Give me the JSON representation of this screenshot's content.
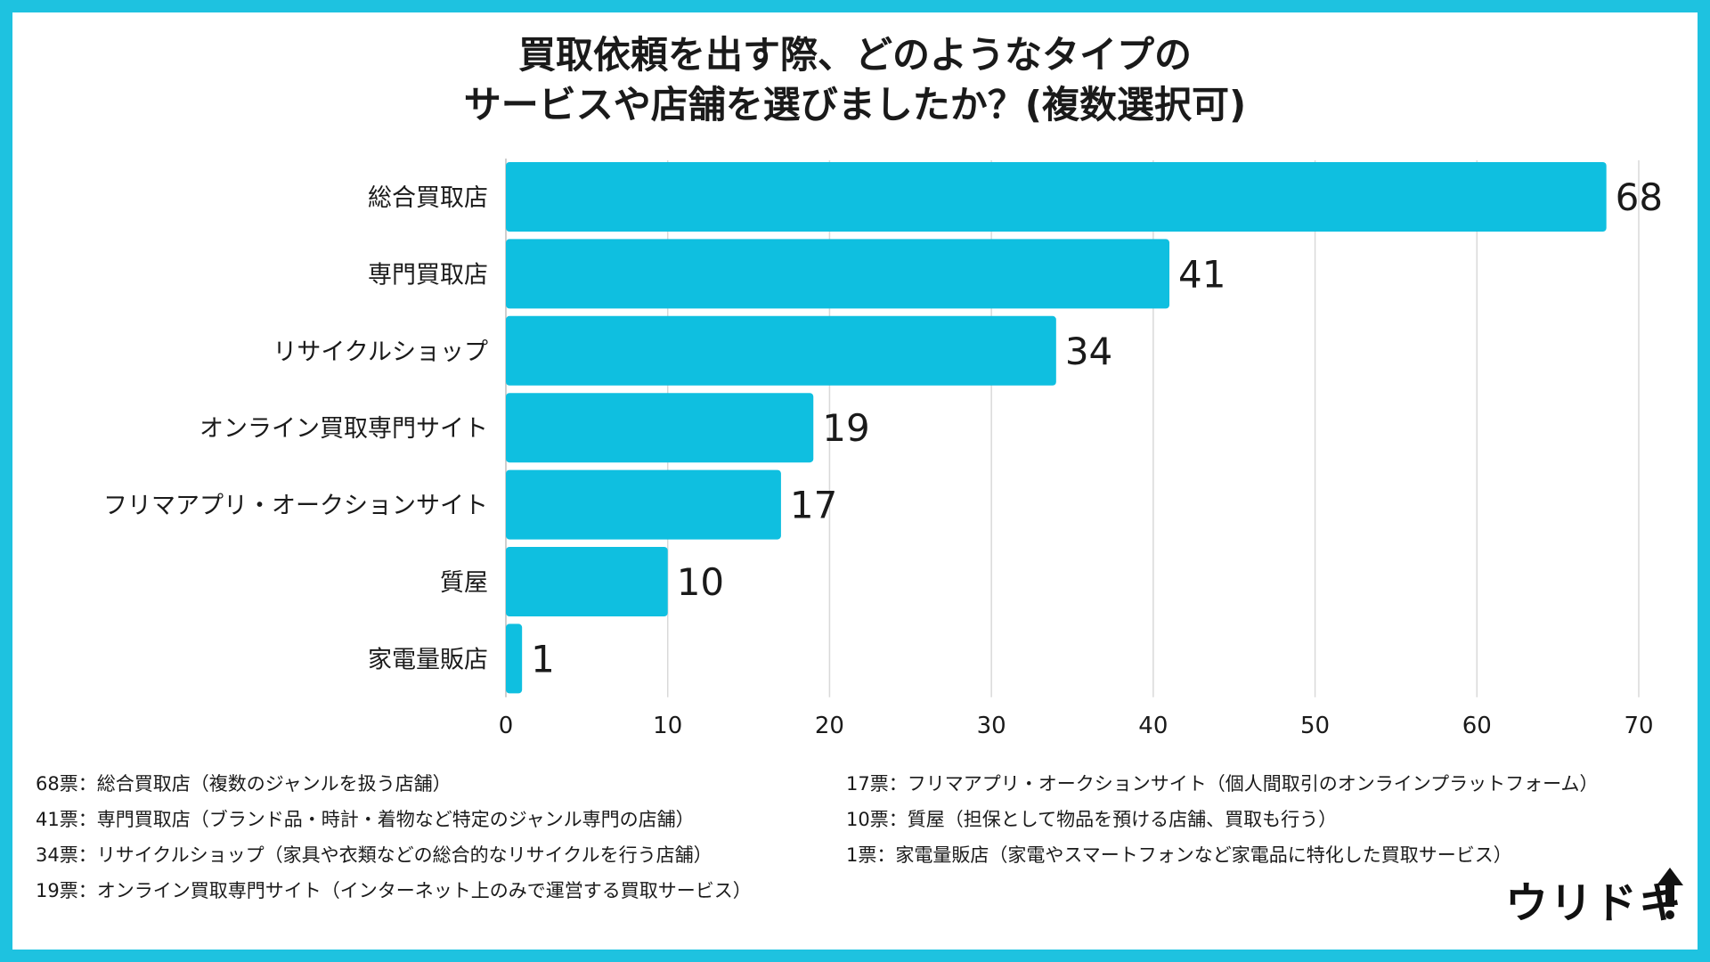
{
  "title": {
    "line1": "買取依頼を出す際、どのようなタイプの",
    "line2": "サービスや店舗を選びましたか？(複数選択可)"
  },
  "chart_data": {
    "type": "bar",
    "orientation": "horizontal",
    "categories": [
      "総合買取店",
      "専門買取店",
      "リサイクルショップ",
      "オンライン買取専門サイト",
      "フリマアプリ・オークションサイト",
      "質屋",
      "家電量販店"
    ],
    "values": [
      68,
      41,
      34,
      19,
      17,
      10,
      1
    ],
    "xlim": [
      0,
      70
    ],
    "xticks": [
      0,
      10,
      20,
      30,
      40,
      50,
      60,
      70
    ],
    "bar_color": "#0fbfe0",
    "grid": true
  },
  "notes_left": [
    "68票：総合買取店（複数のジャンルを扱う店舗）",
    "41票：専門買取店（ブランド品・時計・着物など特定のジャンル専門の店舗）",
    "34票：リサイクルショップ（家具や衣類などの総合的なリサイクルを行う店舗）",
    "19票：オンライン買取専門サイト（インターネット上のみで運営する買取サービス）"
  ],
  "notes_right": [
    "17票：フリマアプリ・オークションサイト（個人間取引のオンラインプラットフォーム）",
    "10票：質屋（担保として物品を預ける店舗、買取も行う）",
    "1票：家電量販店（家電やスマートフォンなど家電品に特化した買取サービス）"
  ],
  "logo": {
    "text": "ウリドキ"
  },
  "colors": {
    "frame": "#1ec2e0",
    "bar": "#0fbfe0"
  }
}
